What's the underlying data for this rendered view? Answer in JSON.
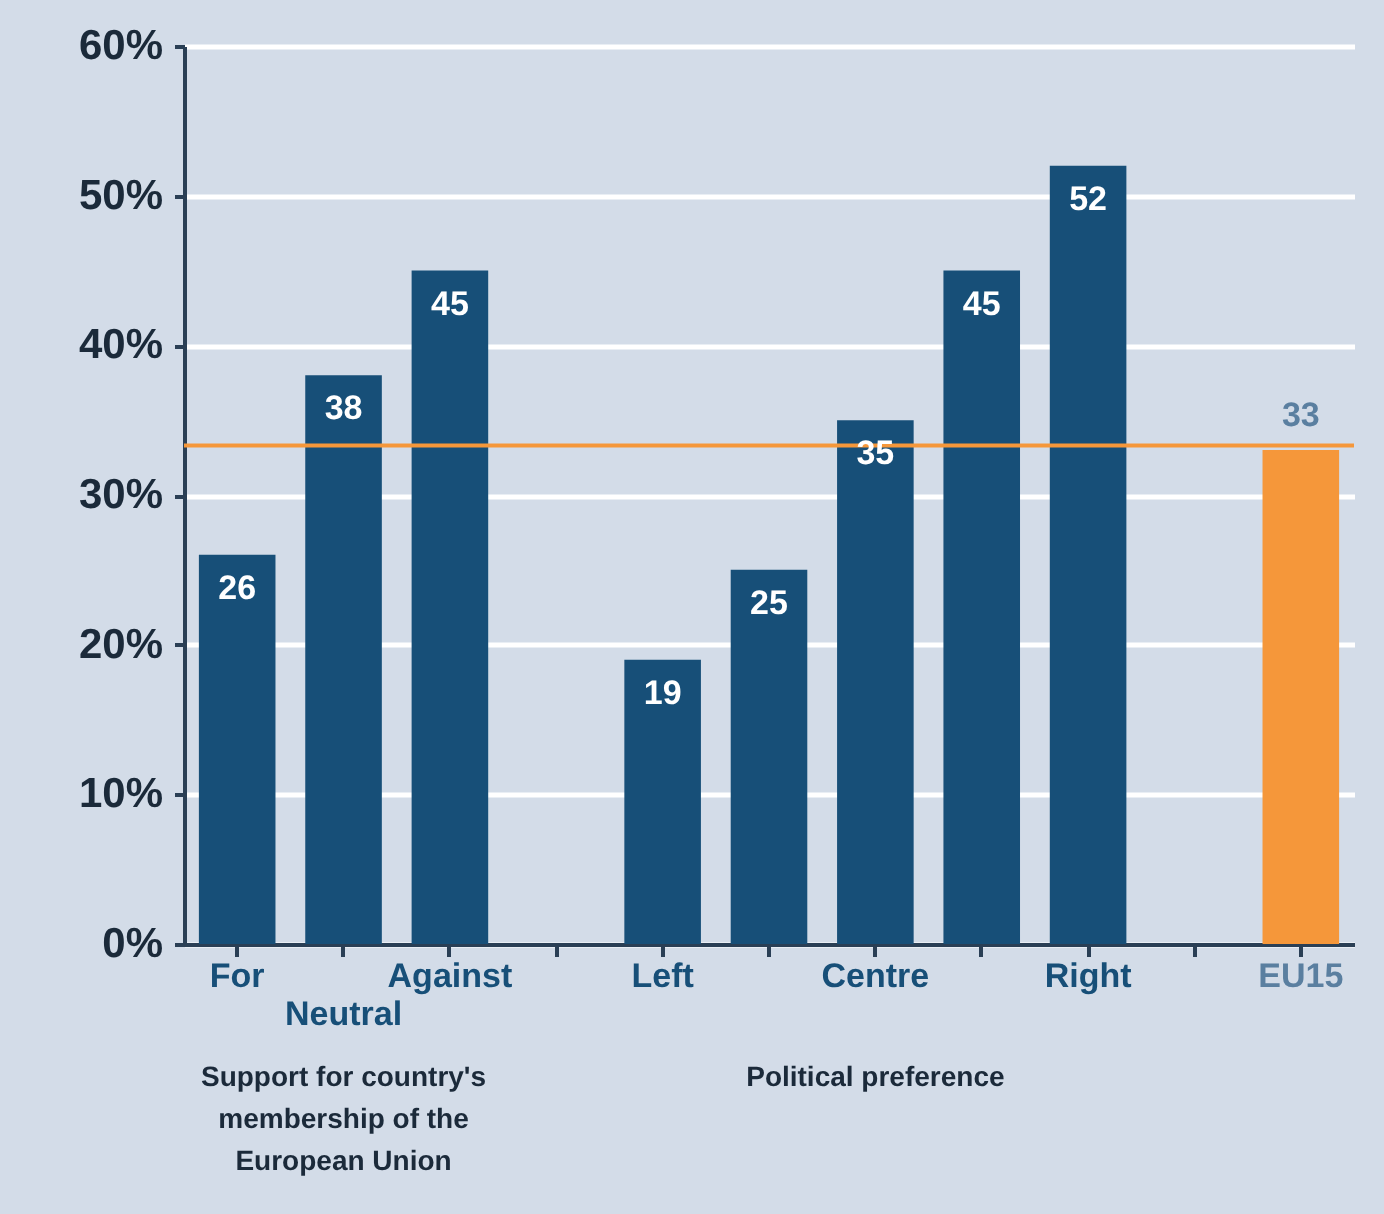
{
  "chart_data": {
    "type": "bar",
    "categories": [
      "For",
      "Neutral",
      "Against",
      null,
      "Left",
      null,
      "Centre",
      null,
      "Right",
      null,
      "EU15"
    ],
    "values": [
      26,
      38,
      45,
      null,
      19,
      25,
      35,
      45,
      52,
      null,
      33
    ],
    "colors": [
      "#174f78",
      "#174f78",
      "#174f78",
      null,
      "#174f78",
      "#174f78",
      "#174f78",
      "#174f78",
      "#174f78",
      null,
      "#f5973a"
    ],
    "data_labels": true,
    "ylim": [
      0,
      60
    ],
    "yticks": [
      {
        "value": 0,
        "label": "0%"
      },
      {
        "value": 10,
        "label": "10%"
      },
      {
        "value": 20,
        "label": "20%"
      },
      {
        "value": 30,
        "label": "30%"
      },
      {
        "value": 40,
        "label": "40%"
      },
      {
        "value": 50,
        "label": "50%"
      },
      {
        "value": 60,
        "label": "60%"
      }
    ],
    "grid": "y",
    "ref_lines": [
      {
        "axis": "y",
        "value": 33.3,
        "label": null,
        "color": "#f5973a"
      }
    ],
    "annotations": [
      "Support for country's membership of the European Union",
      "Political preference"
    ]
  }
}
